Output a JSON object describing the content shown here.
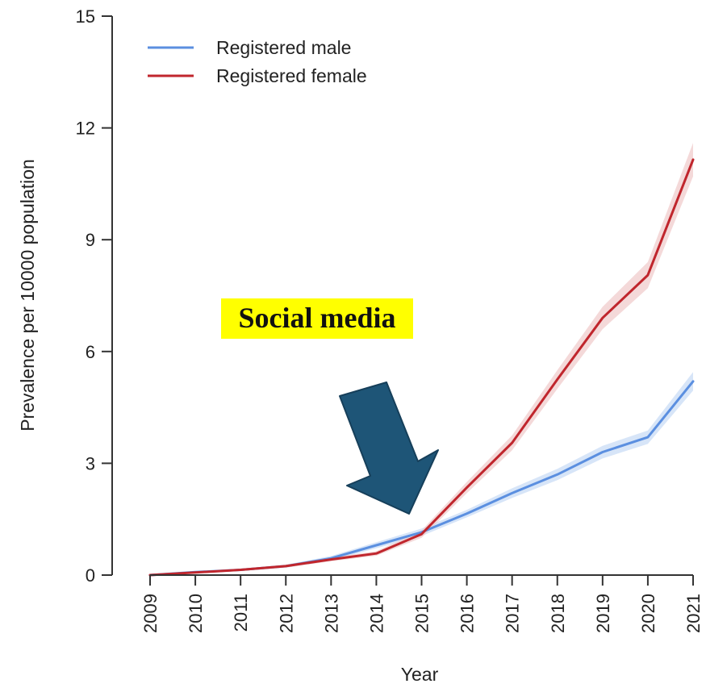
{
  "chart_data": {
    "type": "line",
    "x": [
      "2009",
      "2010",
      "2011",
      "2012",
      "2013",
      "2014",
      "2015",
      "2016",
      "2017",
      "2018",
      "2019",
      "2020",
      "2021"
    ],
    "ylim": [
      0,
      15
    ],
    "yticks": [
      0,
      3,
      6,
      9,
      12,
      15
    ],
    "xlabel": "Year",
    "ylabel": "Prevalence per 10000 population",
    "grid": false,
    "legend_position": "top-left",
    "series": [
      {
        "name": "Registered male",
        "color": "#5b8fe0",
        "band_color": "#c9dcf6",
        "values": [
          0.0,
          0.08,
          0.14,
          0.24,
          0.45,
          0.8,
          1.15,
          1.65,
          2.2,
          2.7,
          3.3,
          3.7,
          5.2
        ],
        "lower": [
          0.0,
          0.06,
          0.11,
          0.2,
          0.39,
          0.72,
          1.05,
          1.55,
          2.07,
          2.55,
          3.13,
          3.52,
          4.95
        ],
        "upper": [
          0.0,
          0.1,
          0.17,
          0.28,
          0.51,
          0.88,
          1.25,
          1.75,
          2.33,
          2.85,
          3.47,
          3.88,
          5.45
        ]
      },
      {
        "name": "Registered female",
        "color": "#c0262d",
        "band_color": "#f0cccc",
        "values": [
          0.0,
          0.07,
          0.14,
          0.24,
          0.42,
          0.58,
          1.1,
          2.35,
          3.55,
          5.25,
          6.9,
          8.05,
          11.15
        ],
        "lower": [
          0.0,
          0.05,
          0.11,
          0.2,
          0.37,
          0.52,
          1.0,
          2.2,
          3.35,
          5.0,
          6.6,
          7.7,
          10.7
        ],
        "upper": [
          0.0,
          0.09,
          0.17,
          0.28,
          0.47,
          0.64,
          1.2,
          2.5,
          3.75,
          5.5,
          7.2,
          8.4,
          11.6
        ]
      }
    ],
    "annotation": {
      "text": "Social media",
      "highlight_color": "#ffff00",
      "arrow_color": "#1e5577",
      "points_to_x": "2015"
    }
  }
}
